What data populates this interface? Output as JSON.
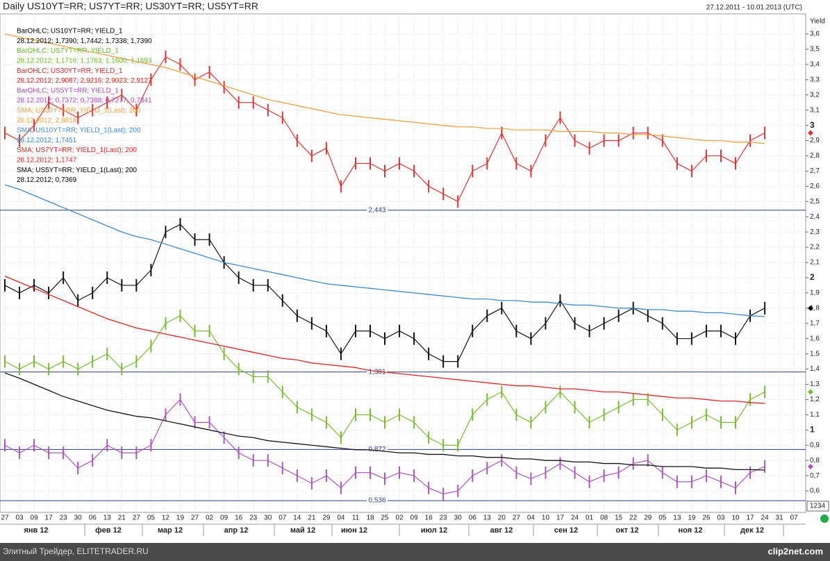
{
  "chart_data": {
    "type": "line",
    "title": "Daily US10YT=RR; US7YT=RR; US30YT=RR; US5YT=RR",
    "date_range": "27.12.2011 - 10.01.2013 (UTC)",
    "y_label": "Yield",
    "corner_label": "1234",
    "footer": "Элитный Трейдер, ELITETRADER.RU",
    "watermark": "clip2net.com",
    "legend": [
      {
        "text": "BarOHLC; US10YT=RR; YIELD_1",
        "color": "#000000"
      },
      {
        "text": "28.12.2012; 1,7390; 1,7442; 1,7338; 1,7390",
        "color": "#000000"
      },
      {
        "text": "BarOHLC; US7YT=RR; YIELD_1",
        "color": "#66bb22"
      },
      {
        "text": "28.12.2012; 1,1716; 1,1763; 1,1600; 1,1693",
        "color": "#66bb22"
      },
      {
        "text": "BarOHLC; US30YT=RR; YIELD_1",
        "color": "#dd2222"
      },
      {
        "text": "28.12.2012; 2,9087; 2,9216; 2,9023; 2,9127",
        "color": "#dd2222"
      },
      {
        "text": "BarOHLC; US5YT=RR; YIELD_1",
        "color": "#aa44bb"
      },
      {
        "text": "28.12.2012; 0,7372; 0,7388; 0,7277; 0,7341",
        "color": "#aa44bb"
      },
      {
        "text": "SMA; US30YT=RR; YIELD_1(Last); 200",
        "color": "#f0a040"
      },
      {
        "text": "28.12.2012; 2,8818",
        "color": "#f0a040"
      },
      {
        "text": "SMA; US10YT=RR; YIELD_1(Last); 200",
        "color": "#3a8ad0"
      },
      {
        "text": "28.12.2012; 1,7451",
        "color": "#3a8ad0"
      },
      {
        "text": "SMA; US7YT=RR; YIELD_1(Last); 200",
        "color": "#dd2222"
      },
      {
        "text": "28.12.2012; 1,1747",
        "color": "#dd2222"
      },
      {
        "text": "SMA; US5YT=RR; YIELD_1(Last); 200",
        "color": "#000000"
      },
      {
        "text": "28.12.2012; 0,7369",
        "color": "#000000"
      }
    ],
    "categories": [
      "27",
      "03",
      "09",
      "17",
      "23",
      "30",
      "06",
      "13",
      "21",
      "27",
      "05",
      "12",
      "19",
      "27",
      "02",
      "09",
      "16",
      "23",
      "30",
      "07",
      "14",
      "21",
      "29",
      "04",
      "11",
      "18",
      "25",
      "02",
      "09",
      "16",
      "23",
      "30",
      "06",
      "13",
      "20",
      "27",
      "04",
      "10",
      "17",
      "24",
      "01",
      "08",
      "15",
      "22",
      "29",
      "05",
      "13",
      "19",
      "26",
      "03",
      "10",
      "17",
      "24",
      "31",
      "07"
    ],
    "months": [
      "янв 12",
      "фев 12",
      "мар 12",
      "апр 12",
      "май 12",
      "июн 12",
      "июл 12",
      "авг 12",
      "сен 12",
      "окт 12",
      "ноя 12",
      "дек 12"
    ],
    "series": [
      {
        "name": "US30YT=RR",
        "color": "#dd3333",
        "style": "bars",
        "values": [
          2.95,
          2.9,
          3.0,
          3.15,
          3.1,
          3.05,
          3.1,
          3.15,
          3.2,
          3.1,
          3.3,
          3.45,
          3.4,
          3.3,
          3.35,
          3.25,
          3.15,
          3.15,
          3.1,
          3.05,
          2.9,
          2.8,
          2.85,
          2.6,
          2.75,
          2.75,
          2.7,
          2.75,
          2.7,
          2.6,
          2.55,
          2.5,
          2.7,
          2.75,
          2.95,
          2.75,
          2.7,
          2.9,
          3.05,
          2.9,
          2.85,
          2.9,
          2.9,
          2.95,
          2.95,
          2.9,
          2.75,
          2.7,
          2.8,
          2.8,
          2.75,
          2.9,
          2.95,
          null,
          null
        ]
      },
      {
        "name": "US10YT=RR",
        "color": "#111111",
        "style": "bars",
        "values": [
          1.95,
          1.9,
          1.95,
          1.9,
          2.0,
          1.85,
          1.9,
          2.0,
          1.95,
          1.95,
          2.05,
          2.3,
          2.35,
          2.25,
          2.25,
          2.1,
          2.0,
          1.95,
          1.95,
          1.85,
          1.75,
          1.7,
          1.65,
          1.5,
          1.65,
          1.65,
          1.6,
          1.65,
          1.6,
          1.5,
          1.45,
          1.45,
          1.65,
          1.75,
          1.8,
          1.65,
          1.6,
          1.7,
          1.85,
          1.7,
          1.65,
          1.7,
          1.75,
          1.8,
          1.75,
          1.7,
          1.6,
          1.6,
          1.65,
          1.65,
          1.6,
          1.75,
          1.8,
          null,
          null
        ]
      },
      {
        "name": "US7YT=RR",
        "color": "#77bb33",
        "style": "bars",
        "values": [
          1.45,
          1.4,
          1.45,
          1.4,
          1.45,
          1.4,
          1.45,
          1.5,
          1.4,
          1.45,
          1.55,
          1.7,
          1.75,
          1.65,
          1.65,
          1.5,
          1.4,
          1.35,
          1.35,
          1.25,
          1.15,
          1.1,
          1.05,
          0.95,
          1.1,
          1.1,
          1.05,
          1.1,
          1.05,
          0.95,
          0.9,
          0.9,
          1.1,
          1.2,
          1.25,
          1.1,
          1.05,
          1.15,
          1.25,
          1.15,
          1.05,
          1.1,
          1.15,
          1.2,
          1.2,
          1.1,
          1.0,
          1.05,
          1.1,
          1.05,
          1.05,
          1.2,
          1.25,
          null,
          null
        ]
      },
      {
        "name": "US5YT=RR",
        "color": "#aa55bb",
        "style": "bars",
        "values": [
          0.9,
          0.85,
          0.9,
          0.85,
          0.85,
          0.75,
          0.8,
          0.9,
          0.85,
          0.85,
          0.9,
          1.1,
          1.2,
          1.05,
          1.05,
          0.95,
          0.85,
          0.8,
          0.8,
          0.75,
          0.7,
          0.65,
          0.7,
          0.62,
          0.72,
          0.72,
          0.68,
          0.72,
          0.7,
          0.62,
          0.58,
          0.6,
          0.7,
          0.75,
          0.8,
          0.72,
          0.68,
          0.72,
          0.78,
          0.72,
          0.66,
          0.7,
          0.72,
          0.78,
          0.8,
          0.72,
          0.66,
          0.66,
          0.7,
          0.66,
          0.62,
          0.72,
          0.76,
          null,
          null
        ]
      },
      {
        "name": "SMA US30YT=RR",
        "color": "#f0a040",
        "style": "line",
        "values": [
          3.6,
          3.58,
          3.56,
          3.54,
          3.52,
          3.5,
          3.48,
          3.46,
          3.44,
          3.42,
          3.4,
          3.38,
          3.35,
          3.32,
          3.29,
          3.26,
          3.23,
          3.2,
          3.17,
          3.15,
          3.13,
          3.11,
          3.09,
          3.07,
          3.06,
          3.05,
          3.04,
          3.03,
          3.02,
          3.01,
          3.0,
          2.99,
          2.99,
          2.98,
          2.98,
          2.97,
          2.97,
          2.97,
          2.96,
          2.96,
          2.96,
          2.95,
          2.95,
          2.94,
          2.94,
          2.93,
          2.92,
          2.91,
          2.9,
          2.9,
          2.89,
          2.89,
          2.88,
          null,
          null
        ]
      },
      {
        "name": "SMA US10YT=RR",
        "color": "#3a8ad0",
        "style": "line",
        "values": [
          2.61,
          2.58,
          2.54,
          2.5,
          2.46,
          2.42,
          2.38,
          2.34,
          2.3,
          2.27,
          2.25,
          2.22,
          2.19,
          2.16,
          2.13,
          2.1,
          2.08,
          2.06,
          2.04,
          2.02,
          2.0,
          1.98,
          1.96,
          1.95,
          1.94,
          1.93,
          1.92,
          1.91,
          1.9,
          1.89,
          1.88,
          1.87,
          1.86,
          1.86,
          1.85,
          1.85,
          1.84,
          1.84,
          1.83,
          1.82,
          1.82,
          1.81,
          1.8,
          1.8,
          1.79,
          1.79,
          1.78,
          1.78,
          1.77,
          1.77,
          1.76,
          1.75,
          1.745,
          null,
          null
        ]
      },
      {
        "name": "SMA US7YT=RR",
        "color": "#dd2222",
        "style": "line",
        "values": [
          2.01,
          1.97,
          1.93,
          1.89,
          1.85,
          1.81,
          1.77,
          1.73,
          1.7,
          1.67,
          1.65,
          1.63,
          1.61,
          1.59,
          1.57,
          1.55,
          1.53,
          1.51,
          1.49,
          1.47,
          1.46,
          1.44,
          1.43,
          1.42,
          1.41,
          1.39,
          1.38,
          1.37,
          1.36,
          1.35,
          1.34,
          1.33,
          1.32,
          1.31,
          1.3,
          1.29,
          1.29,
          1.28,
          1.27,
          1.27,
          1.26,
          1.25,
          1.25,
          1.24,
          1.23,
          1.22,
          1.21,
          1.21,
          1.2,
          1.19,
          1.19,
          1.18,
          1.175,
          null,
          null
        ]
      },
      {
        "name": "SMA US5YT=RR",
        "color": "#111111",
        "style": "line",
        "values": [
          1.375,
          1.34,
          1.3,
          1.26,
          1.22,
          1.19,
          1.16,
          1.13,
          1.11,
          1.09,
          1.08,
          1.06,
          1.04,
          1.02,
          1.0,
          0.98,
          0.96,
          0.95,
          0.93,
          0.92,
          0.91,
          0.9,
          0.89,
          0.88,
          0.87,
          0.87,
          0.86,
          0.85,
          0.85,
          0.84,
          0.84,
          0.83,
          0.83,
          0.82,
          0.82,
          0.81,
          0.81,
          0.8,
          0.8,
          0.79,
          0.79,
          0.78,
          0.78,
          0.77,
          0.77,
          0.76,
          0.76,
          0.76,
          0.75,
          0.75,
          0.74,
          0.74,
          0.737,
          null,
          null
        ]
      }
    ],
    "levels": [
      {
        "value": 2.443,
        "label": "2,443"
      },
      {
        "value": 1.381,
        "label": "1,381"
      },
      {
        "value": 0.872,
        "label": "0,872"
      },
      {
        "value": 0.536,
        "label": "0,536"
      }
    ],
    "level_color": "#2a3a8a",
    "ylim": [
      0.459,
      3.732
    ],
    "yticks": [
      {
        "value": 0.6,
        "label": "0,6"
      },
      {
        "value": 0.7,
        "label": "0,7"
      },
      {
        "value": 0.8,
        "label": "0,8"
      },
      {
        "value": 0.9,
        "label": "0,9"
      },
      1,
      {
        "value": 1.1,
        "label": "1,1"
      },
      {
        "value": 1.2,
        "label": "1,2"
      },
      {
        "value": 1.3,
        "label": "1,3"
      },
      {
        "value": 1.4,
        "label": "1,4"
      },
      {
        "value": 1.5,
        "label": "1,5"
      },
      {
        "value": 1.6,
        "label": "1,6"
      },
      {
        "value": 1.7,
        "label": "1,7"
      },
      {
        "value": 1.8,
        "label": "1,8"
      },
      {
        "value": 1.9,
        "label": "1,9"
      },
      2,
      {
        "value": 2.1,
        "label": "2,1"
      },
      {
        "value": 2.2,
        "label": "2,2"
      },
      {
        "value": 2.3,
        "label": "2,3"
      },
      {
        "value": 2.4,
        "label": "2,4"
      },
      {
        "value": 2.5,
        "label": "2,5"
      },
      {
        "value": 2.6,
        "label": "2,6"
      },
      {
        "value": 2.7,
        "label": "2,7"
      },
      {
        "value": 2.8,
        "label": "2,8"
      },
      {
        "value": 2.9,
        "label": "2,9"
      },
      3,
      {
        "value": 3.1,
        "label": "3,1"
      },
      {
        "value": 3.2,
        "label": "3,2"
      },
      {
        "value": 3.3,
        "label": "3,3"
      },
      {
        "value": 3.4,
        "label": "3,4"
      },
      {
        "value": 3.5,
        "label": "3,5"
      },
      {
        "value": 3.6,
        "label": "3,6"
      }
    ],
    "grid": true
  }
}
